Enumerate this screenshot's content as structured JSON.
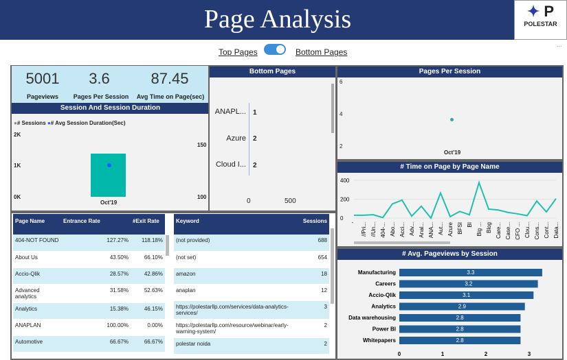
{
  "header": {
    "title": "Page Analysis",
    "logo_text": "POLESTAR"
  },
  "toggle": {
    "left": "Top Pages",
    "right": "Bottom Pages",
    "state": "on"
  },
  "more": "...",
  "kpis": [
    {
      "value": "5001",
      "label": "Pageviews"
    },
    {
      "value": "3.6",
      "label": "Pages Per Session"
    },
    {
      "value": "87.45",
      "label": "Avg Time on Page(sec)"
    }
  ],
  "session_chart": {
    "title": "Session And Session Duration",
    "legend": [
      "# Sessions",
      "# Avg Session Duration(Sec)"
    ],
    "y_left": [
      "2K",
      "1K",
      "0K"
    ],
    "y_right": [
      "150",
      "100"
    ],
    "x": "Oct'19",
    "sessions": 1400,
    "avg_duration": 130
  },
  "bottom_pages": {
    "title": "Bottom Pages",
    "rows": [
      {
        "name": "ANAPL...",
        "value": "1"
      },
      {
        "name": "Azure",
        "value": "2"
      },
      {
        "name": "Cloud I...",
        "value": "2"
      }
    ],
    "x_ticks": [
      "0",
      "500"
    ]
  },
  "pages_per_session": {
    "title": "Pages Per Session",
    "y_ticks": [
      "6",
      "4",
      "2"
    ],
    "x": "Oct'19",
    "value": 3.6
  },
  "chart_data": [
    {
      "type": "line",
      "title": "# Time on Page by Page Name",
      "categories": [
        "'",
        "//Pri...",
        "//Un...",
        "404-...",
        "Abo...",
        "Acci...",
        "Adv...",
        "Anal...",
        "ANA...",
        "Aut...",
        "Azure",
        "BFSI",
        "BI",
        "Big ...",
        "Blog",
        "Care...",
        "Case...",
        "CFO ...",
        "Clou...",
        "Cons...",
        "Cont...",
        "Data..."
      ],
      "values": [
        30,
        30,
        35,
        5,
        150,
        190,
        20,
        125,
        0,
        265,
        15,
        70,
        35,
        375,
        95,
        85,
        60,
        45,
        25,
        180,
        65,
        205
      ],
      "y_ticks": [
        "400",
        "200",
        "0"
      ],
      "ylim": [
        0,
        450
      ]
    },
    {
      "type": "bar",
      "title": "# Avg. Pageviews  by Session",
      "categories": [
        "Manufacturing",
        "Careers",
        "Accio-Qlik",
        "Analytics",
        "Data warehousing",
        "Power BI",
        "Whitepapers"
      ],
      "values": [
        3.3,
        3.2,
        3.1,
        2.9,
        2.8,
        2.8,
        2.8
      ],
      "labels": [
        "3.3",
        "3.2",
        "3.1",
        "2.9",
        "2.8",
        "2.8",
        "2.8"
      ],
      "x_ticks": [
        "0",
        "1",
        "2",
        "3"
      ],
      "xlim": [
        0,
        3.5
      ]
    }
  ],
  "page_table": {
    "headers": [
      "Page Name",
      "Entrance Rate",
      "#Exit Rate"
    ],
    "rows": [
      [
        "404-NOT FOUND",
        "127.27%",
        "118.18%"
      ],
      [
        "About Us",
        "43.50%",
        "66.10%"
      ],
      [
        "Accio-Qlik",
        "28.57%",
        "42.86%"
      ],
      [
        "Advanced analytics",
        "31.58%",
        "52.63%"
      ],
      [
        "Analytics",
        "15.38%",
        "46.15%"
      ],
      [
        "ANAPLAN",
        "100.00%",
        "0.00%"
      ],
      [
        "Automotive",
        "66.67%",
        "66.67%"
      ]
    ]
  },
  "keyword_table": {
    "headers": [
      "Keyword",
      "Sessions"
    ],
    "rows": [
      [
        "(not provided)",
        "688"
      ],
      [
        "(not set)",
        "654"
      ],
      [
        "amazon",
        "18"
      ],
      [
        "anaplan",
        "12"
      ],
      [
        "https://polestarllp.com/services/data-analytics-services/",
        "3"
      ],
      [
        "https://polestarllp.com/resource/webinar/early-warning-system/",
        "2"
      ],
      [
        "polestar noida",
        "2"
      ]
    ]
  }
}
